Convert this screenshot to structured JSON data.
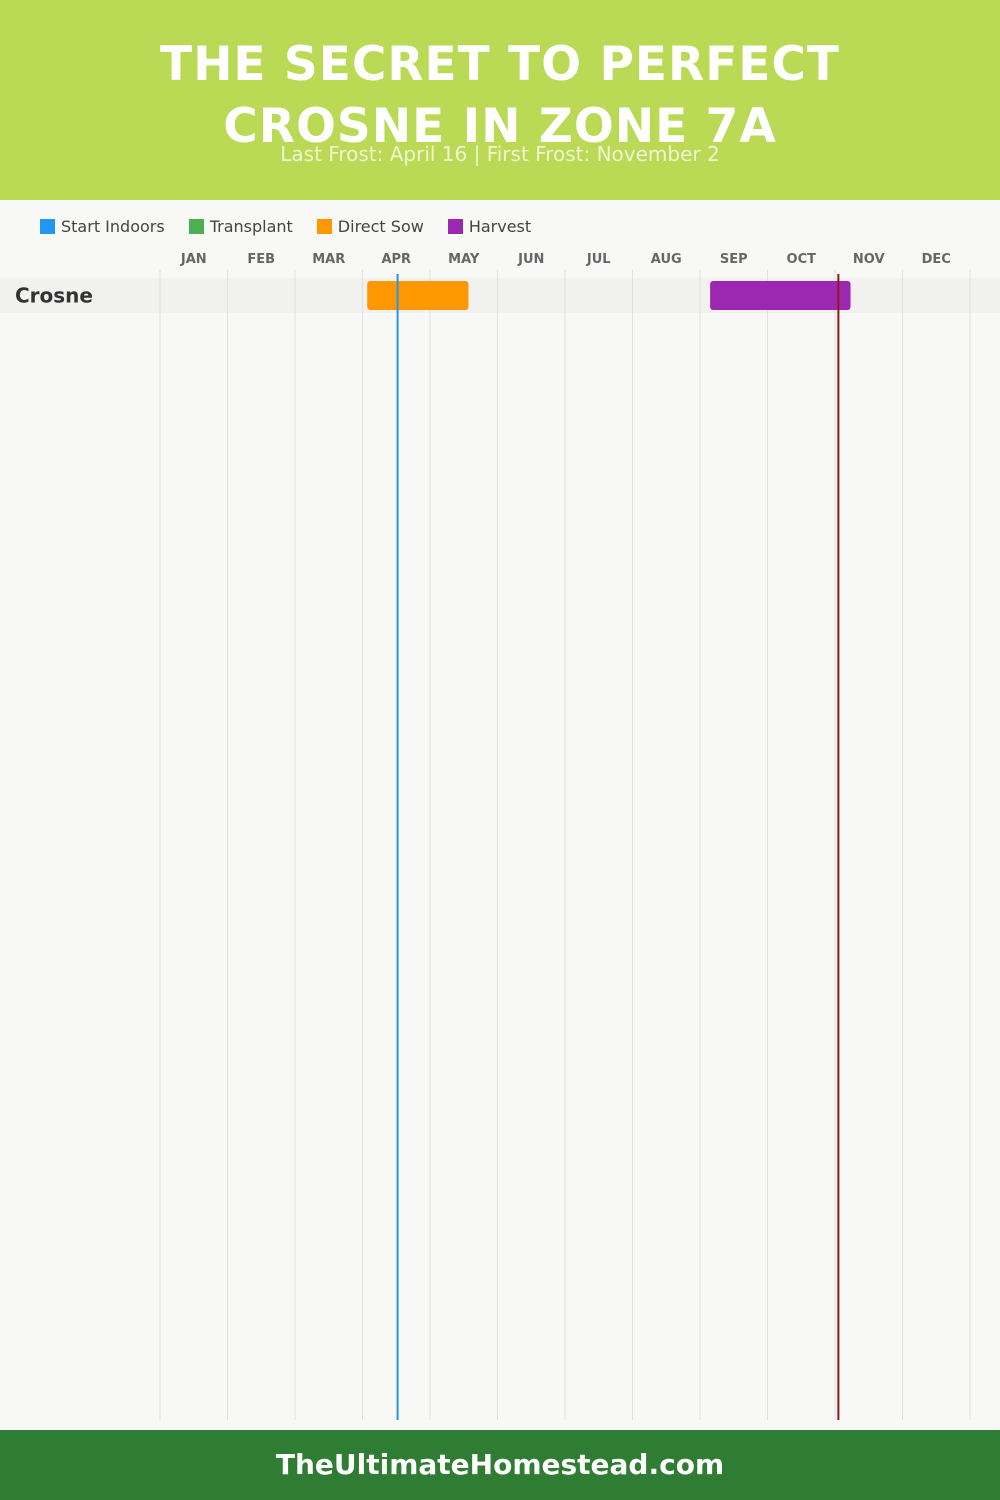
{
  "header": {
    "title_line1": "THE SECRET TO PERFECT",
    "title_line2": "CROSNE IN ZONE 7A",
    "subtitle": "Last Frost: April 16 | First Frost: November 2"
  },
  "legend": [
    {
      "label": "Start Indoors",
      "color": "#2196f3"
    },
    {
      "label": "Transplant",
      "color": "#4caf50"
    },
    {
      "label": "Direct Sow",
      "color": "#ff9800"
    },
    {
      "label": "Harvest",
      "color": "#9c27b0"
    }
  ],
  "chart_data": {
    "type": "gantt",
    "months": [
      "JAN",
      "FEB",
      "MAR",
      "APR",
      "MAY",
      "JUN",
      "JUL",
      "AUG",
      "SEP",
      "OCT",
      "NOV",
      "DEC"
    ],
    "x_unit": "month (1 = January)",
    "rows": [
      {
        "name": "Crosne",
        "bars": [
          {
            "activity": "Direct Sow",
            "start": 4.07,
            "end": 5.57,
            "color": "#ff9800"
          },
          {
            "activity": "Harvest",
            "start": 9.15,
            "end": 11.23,
            "color": "#9c27b0"
          }
        ]
      }
    ],
    "markers": [
      {
        "name": "Last Frost",
        "date": "April 16",
        "value": 4.52,
        "color": "#2196f3"
      },
      {
        "name": "First Frost",
        "date": "November 2",
        "value": 11.05,
        "color": "#8b1a1a"
      }
    ],
    "grid": true
  },
  "footer": {
    "text": "TheUltimateHomestead.com"
  }
}
